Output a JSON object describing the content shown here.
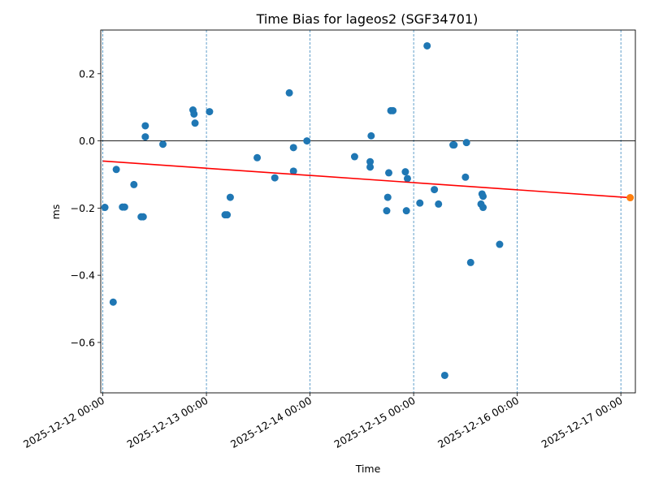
{
  "chart_data": {
    "type": "scatter",
    "title": "Time Bias for lageos2 (SGF34701)",
    "xlabel": "Time",
    "ylabel": "ms",
    "x_unit": "days since 2025-12-12 00:00",
    "xlim": [
      -0.02,
      5.14
    ],
    "ylim": [
      -0.75,
      0.33
    ],
    "x_ticks": [
      {
        "x": 0,
        "label": "2025-12-12 00:00"
      },
      {
        "x": 1,
        "label": "2025-12-13 00:00"
      },
      {
        "x": 2,
        "label": "2025-12-14 00:00"
      },
      {
        "x": 3,
        "label": "2025-12-15 00:00"
      },
      {
        "x": 4,
        "label": "2025-12-16 00:00"
      },
      {
        "x": 5,
        "label": "2025-12-17 00:00"
      }
    ],
    "y_ticks": [
      {
        "y": -0.6,
        "label": "−0.6"
      },
      {
        "y": -0.4,
        "label": "−0.4"
      },
      {
        "y": -0.2,
        "label": "−0.2"
      },
      {
        "y": 0.0,
        "label": "0.0"
      },
      {
        "y": 0.2,
        "label": "0.2"
      }
    ],
    "grid": "vertical dashed at day boundaries",
    "zero_line": 0,
    "colors": {
      "points": "#1f77b4",
      "trend": "#ff0000",
      "prediction": "#ff7f0e",
      "grid": "#1f77b4"
    },
    "series": [
      {
        "name": "",
        "points": [
          {
            "x": 0.02,
            "y": -0.198
          },
          {
            "x": 0.1,
            "y": -0.48
          },
          {
            "x": 0.13,
            "y": -0.085
          },
          {
            "x": 0.19,
            "y": -0.197
          },
          {
            "x": 0.21,
            "y": -0.197
          },
          {
            "x": 0.3,
            "y": -0.13
          },
          {
            "x": 0.37,
            "y": -0.226
          },
          {
            "x": 0.39,
            "y": -0.226
          },
          {
            "x": 0.41,
            "y": 0.045
          },
          {
            "x": 0.41,
            "y": 0.012
          },
          {
            "x": 0.58,
            "y": -0.01
          },
          {
            "x": 0.87,
            "y": 0.092
          },
          {
            "x": 0.88,
            "y": 0.08
          },
          {
            "x": 0.89,
            "y": 0.053
          },
          {
            "x": 1.03,
            "y": 0.087
          },
          {
            "x": 1.18,
            "y": -0.22
          },
          {
            "x": 1.2,
            "y": -0.22
          },
          {
            "x": 1.23,
            "y": -0.168
          },
          {
            "x": 1.49,
            "y": -0.05
          },
          {
            "x": 1.66,
            "y": -0.11
          },
          {
            "x": 1.8,
            "y": 0.143
          },
          {
            "x": 1.84,
            "y": -0.02
          },
          {
            "x": 1.84,
            "y": -0.09
          },
          {
            "x": 1.97,
            "y": 0.0
          },
          {
            "x": 2.43,
            "y": -0.047
          },
          {
            "x": 2.58,
            "y": -0.062
          },
          {
            "x": 2.58,
            "y": -0.078
          },
          {
            "x": 2.59,
            "y": 0.015
          },
          {
            "x": 2.74,
            "y": -0.208
          },
          {
            "x": 2.75,
            "y": -0.168
          },
          {
            "x": 2.76,
            "y": -0.095
          },
          {
            "x": 2.78,
            "y": 0.09
          },
          {
            "x": 2.8,
            "y": 0.09
          },
          {
            "x": 2.92,
            "y": -0.092
          },
          {
            "x": 2.93,
            "y": -0.208
          },
          {
            "x": 2.94,
            "y": -0.112
          },
          {
            "x": 3.06,
            "y": -0.185
          },
          {
            "x": 3.13,
            "y": 0.283
          },
          {
            "x": 3.2,
            "y": -0.145
          },
          {
            "x": 3.24,
            "y": -0.188
          },
          {
            "x": 3.3,
            "y": -0.698
          },
          {
            "x": 3.38,
            "y": -0.012
          },
          {
            "x": 3.39,
            "y": -0.012
          },
          {
            "x": 3.5,
            "y": -0.108
          },
          {
            "x": 3.51,
            "y": -0.005
          },
          {
            "x": 3.55,
            "y": -0.362
          },
          {
            "x": 3.65,
            "y": -0.188
          },
          {
            "x": 3.66,
            "y": -0.158
          },
          {
            "x": 3.67,
            "y": -0.165
          },
          {
            "x": 3.67,
            "y": -0.198
          },
          {
            "x": 3.83,
            "y": -0.308
          }
        ]
      }
    ],
    "trend_line": {
      "x": [
        0.0,
        5.09
      ],
      "y": [
        -0.06,
        -0.169
      ]
    },
    "prediction_point": {
      "x": 5.09,
      "y": -0.169
    }
  }
}
